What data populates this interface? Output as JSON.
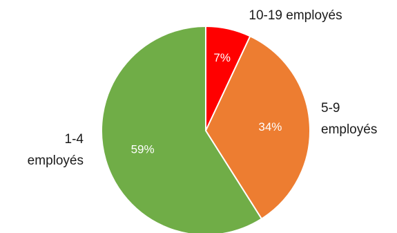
{
  "chart_data": {
    "type": "pie",
    "categories": [
      [
        "10-19 employés"
      ],
      [
        "5-9",
        "employés"
      ],
      [
        "1-4",
        "employés"
      ]
    ],
    "values": [
      7,
      34,
      59
    ],
    "value_labels": [
      "7%",
      "34%",
      "59%"
    ],
    "colors": [
      "#ff0000",
      "#ed7d31",
      "#70ad47"
    ],
    "start_angle_deg": 0,
    "direction": "clockwise",
    "legend": "none",
    "title": ""
  }
}
